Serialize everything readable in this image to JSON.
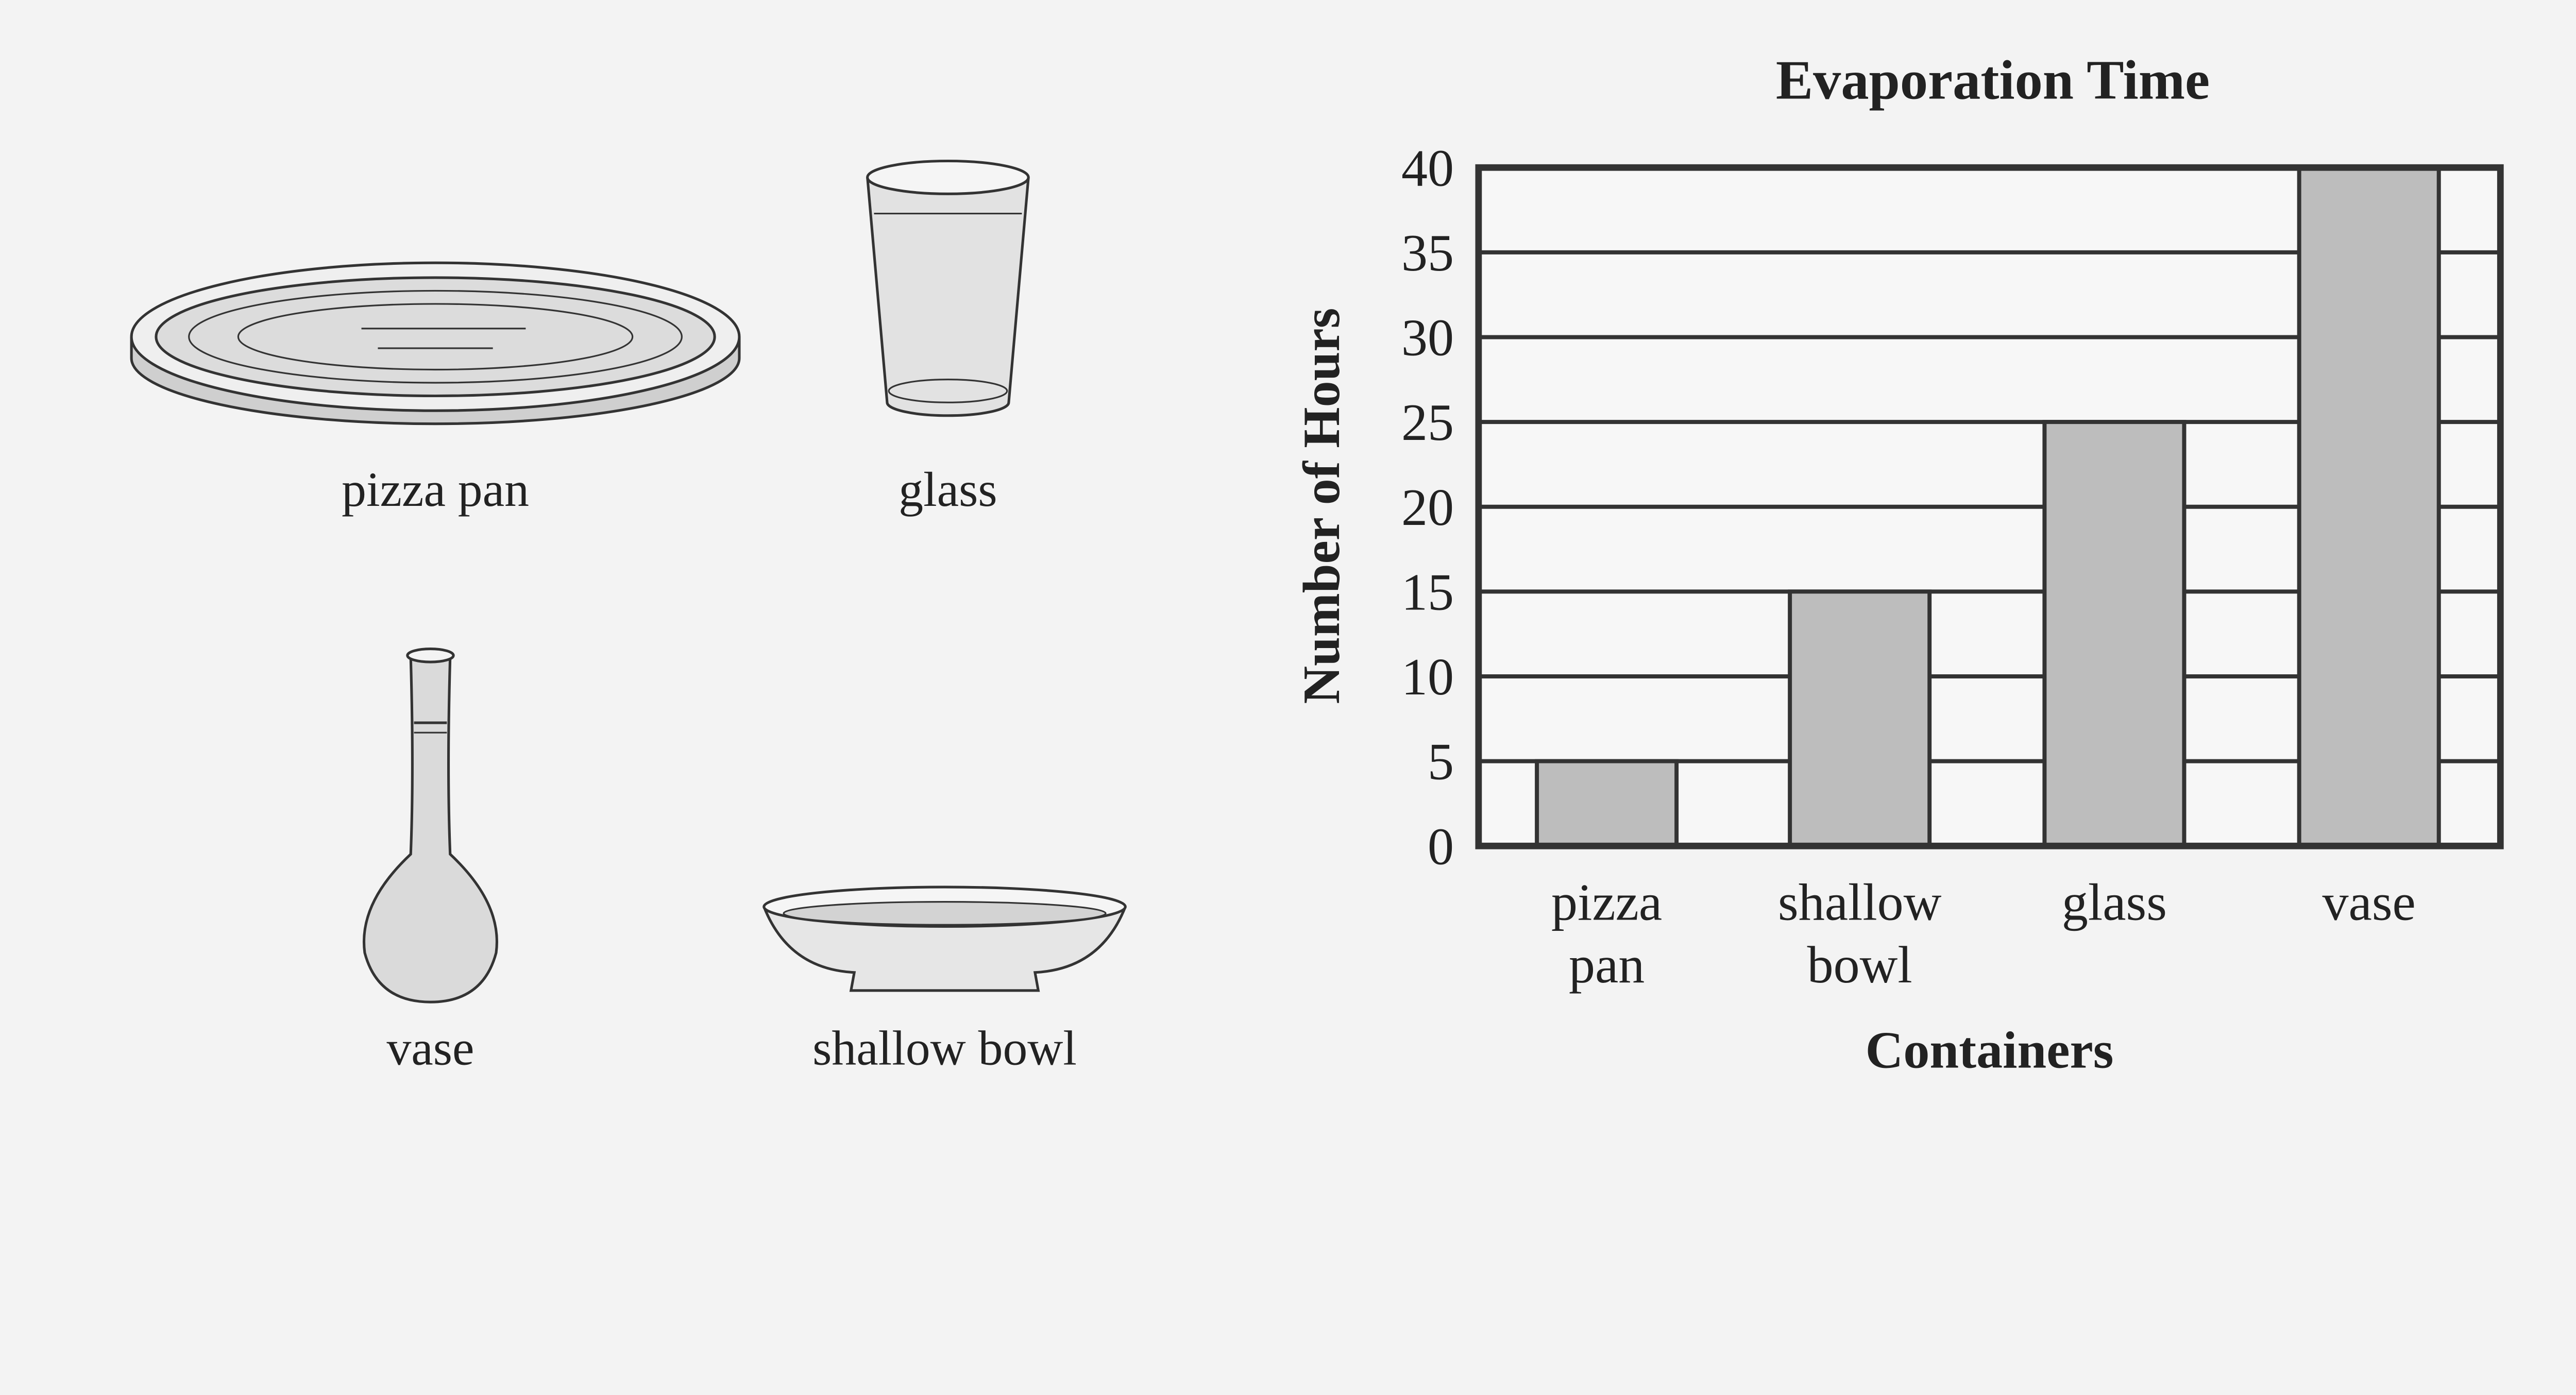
{
  "illustrations": {
    "labels": {
      "pizza_pan": "pizza pan",
      "glass": "glass",
      "vase": "vase",
      "shallow_bowl": "shallow bowl"
    }
  },
  "chart_data": {
    "type": "bar",
    "title": "Evaporation Time",
    "xlabel": "Containers",
    "ylabel": "Number of Hours",
    "categories": [
      [
        "pizza",
        "pan"
      ],
      [
        "shallow",
        "bowl"
      ],
      [
        "glass"
      ],
      [
        "vase"
      ]
    ],
    "values": [
      5,
      15,
      25,
      40
    ],
    "ylim": [
      0,
      40
    ],
    "yticks": [
      0,
      5,
      10,
      15,
      20,
      25,
      30,
      35,
      40
    ],
    "grid": true,
    "colors": {
      "bar": "#bdbdbd",
      "line": "#333333",
      "plot_bg": "#f7f7f7"
    }
  }
}
